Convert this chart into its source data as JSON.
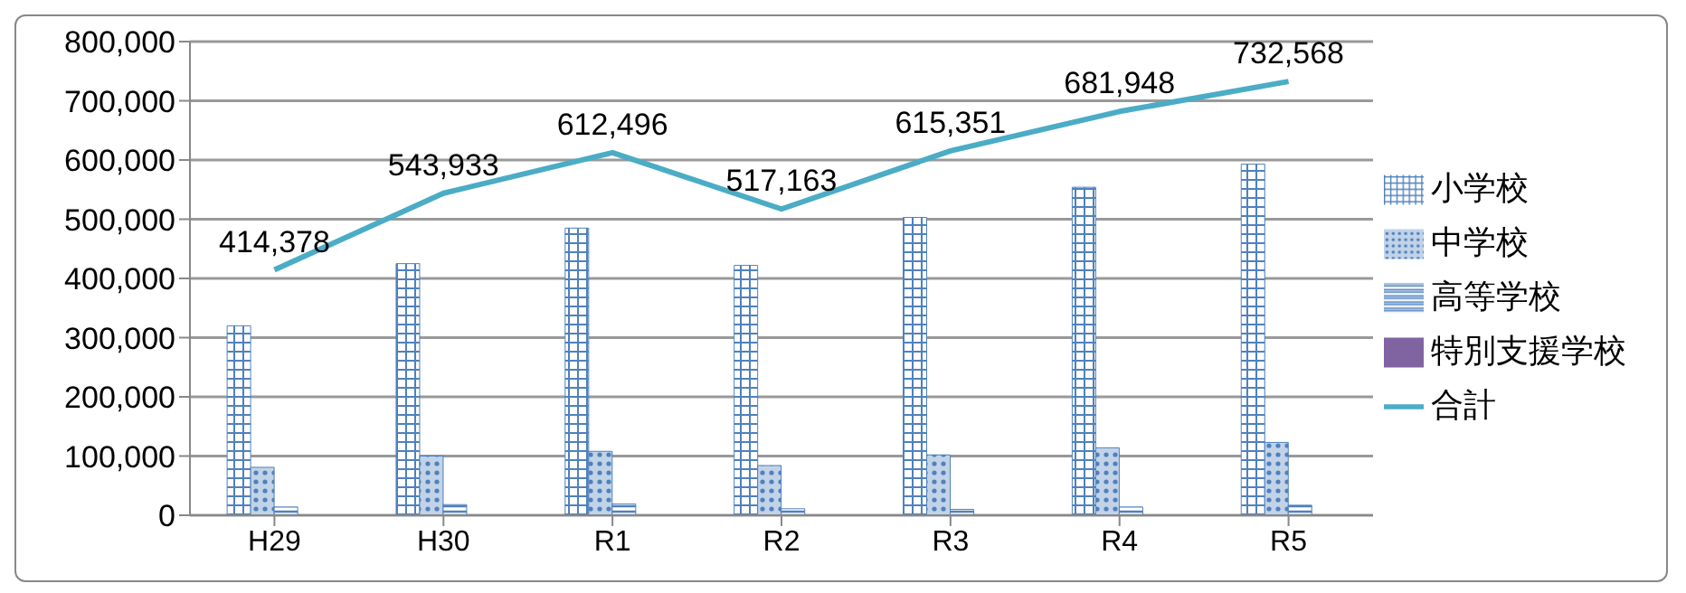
{
  "chart_data": {
    "type": "bar",
    "categories": [
      "H29",
      "H30",
      "R1",
      "R2",
      "R3",
      "R4",
      "R5"
    ],
    "series": [
      {
        "name": "小学校",
        "color": "#4f81bd",
        "values": [
          320000,
          425000,
          485000,
          422000,
          503000,
          554000,
          593000
        ]
      },
      {
        "name": "中学校",
        "color": "#4f81bd",
        "values": [
          81000,
          100000,
          108000,
          84000,
          102000,
          114000,
          123000
        ]
      },
      {
        "name": "高等学校",
        "color": "#4f81bd",
        "values": [
          14000,
          18000,
          19000,
          11000,
          10000,
          14000,
          17000
        ]
      },
      {
        "name": "特別支援学校",
        "color": "#8064a2",
        "values": [
          500,
          500,
          500,
          500,
          500,
          500,
          500
        ]
      },
      {
        "name": "合計",
        "type": "line",
        "color": "#4bacc6",
        "marker": "none",
        "values": [
          414378,
          543933,
          612496,
          517163,
          615351,
          681948,
          732568
        ],
        "value_labels": [
          "414,378",
          "543,933",
          "612,496",
          "517,163",
          "615,351",
          "681,948",
          "732,568"
        ]
      }
    ],
    "ylim": [
      0,
      800000
    ],
    "yticks": [
      {
        "value": 0,
        "label": "0"
      },
      {
        "value": 100000,
        "label": "100,000"
      },
      {
        "value": 200000,
        "label": "200,000"
      },
      {
        "value": 300000,
        "label": "300,000"
      },
      {
        "value": 400000,
        "label": "400,000"
      },
      {
        "value": 500000,
        "label": "500,000"
      },
      {
        "value": 600000,
        "label": "600,000"
      },
      {
        "value": 700000,
        "label": "700,000"
      },
      {
        "value": 800000,
        "label": "800,000"
      }
    ],
    "grid": "y",
    "legend": "right"
  }
}
